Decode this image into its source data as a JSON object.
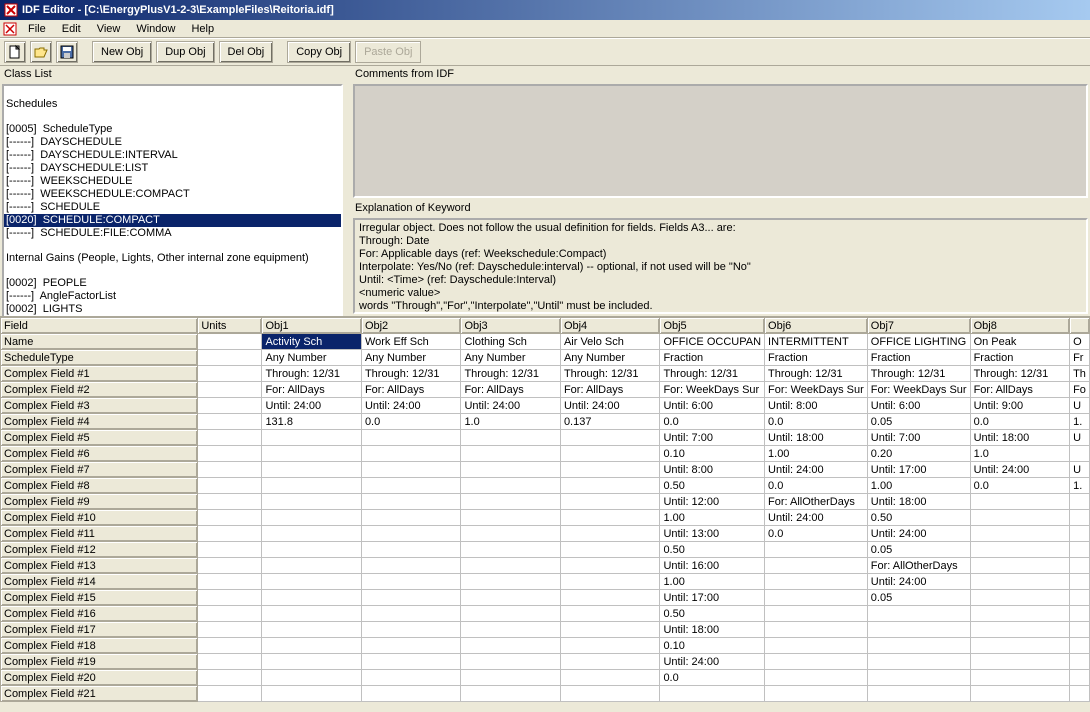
{
  "window": {
    "title": "IDF Editor - [C:\\EnergyPlusV1-2-3\\ExampleFiles\\Reitoria.idf]"
  },
  "menu": {
    "items": [
      "File",
      "Edit",
      "View",
      "Window",
      "Help"
    ]
  },
  "toolbar": {
    "new_obj": "New Obj",
    "dup_obj": "Dup Obj",
    "del_obj": "Del Obj",
    "copy_obj": "Copy Obj",
    "paste_obj": "Paste Obj"
  },
  "labels": {
    "class_list": "Class List",
    "comments": "Comments from IDF",
    "explanation": "Explanation of Keyword"
  },
  "class_list": [
    {
      "t": "blank"
    },
    {
      "t": "line",
      "text": "Schedules"
    },
    {
      "t": "blank"
    },
    {
      "t": "line",
      "text": "[0005]  ScheduleType"
    },
    {
      "t": "line",
      "text": "[------]  DAYSCHEDULE"
    },
    {
      "t": "line",
      "text": "[------]  DAYSCHEDULE:INTERVAL"
    },
    {
      "t": "line",
      "text": "[------]  DAYSCHEDULE:LIST"
    },
    {
      "t": "line",
      "text": "[------]  WEEKSCHEDULE"
    },
    {
      "t": "line",
      "text": "[------]  WEEKSCHEDULE:COMPACT"
    },
    {
      "t": "line",
      "text": "[------]  SCHEDULE"
    },
    {
      "t": "line",
      "text": "[0020]  SCHEDULE:COMPACT",
      "selected": true
    },
    {
      "t": "line",
      "text": "[------]  SCHEDULE:FILE:COMMA"
    },
    {
      "t": "blank"
    },
    {
      "t": "line",
      "text": "Internal Gains (People, Lights, Other internal zone equipment)"
    },
    {
      "t": "blank"
    },
    {
      "t": "line",
      "text": "[0002]  PEOPLE"
    },
    {
      "t": "line",
      "text": "[------]  AngleFactorList"
    },
    {
      "t": "line",
      "text": "[0002]  LIGHTS"
    }
  ],
  "explanation_lines": [
    "Irregular object.  Does not follow the usual definition for fields.  Fields A3... are:",
    "Through: Date",
    "For: Applicable days (ref: Weekschedule:Compact)",
    "Interpolate: Yes/No (ref: Dayschedule:interval) -- optional, if not used will be \"No\"",
    "Until: <Time> (ref: Dayschedule:Interval)",
    "<numeric value>",
    "words \"Through\",\"For\",\"Interpolate\",\"Until\" must be included."
  ],
  "grid": {
    "headers": [
      "Field",
      "Units",
      "Obj1",
      "Obj2",
      "Obj3",
      "Obj4",
      "Obj5",
      "Obj6",
      "Obj7",
      "Obj8",
      ""
    ],
    "row_labels": [
      "Name",
      "ScheduleType",
      "Complex Field #1",
      "Complex Field #2",
      "Complex Field #3",
      "Complex Field #4",
      "Complex Field #5",
      "Complex Field #6",
      "Complex Field #7",
      "Complex Field #8",
      "Complex Field #9",
      "Complex Field #10",
      "Complex Field #11",
      "Complex Field #12",
      "Complex Field #13",
      "Complex Field #14",
      "Complex Field #15",
      "Complex Field #16",
      "Complex Field #17",
      "Complex Field #18",
      "Complex Field #19",
      "Complex Field #20",
      "Complex Field #21"
    ],
    "selected_cell": {
      "row": 0,
      "col": 2
    },
    "cells": [
      [
        "",
        "Activity Sch",
        "Work Eff Sch",
        "Clothing Sch",
        "Air Velo Sch",
        "OFFICE OCCUPAN",
        "INTERMITTENT",
        "OFFICE LIGHTING",
        "On Peak",
        "O"
      ],
      [
        "",
        "Any Number",
        "Any Number",
        "Any Number",
        "Any Number",
        "Fraction",
        "Fraction",
        "Fraction",
        "Fraction",
        "Fr"
      ],
      [
        "",
        "Through: 12/31",
        "Through: 12/31",
        "Through: 12/31",
        "Through: 12/31",
        "Through: 12/31",
        "Through: 12/31",
        "Through: 12/31",
        "Through: 12/31",
        "Th"
      ],
      [
        "",
        "For: AllDays",
        "For: AllDays",
        "For: AllDays",
        "For: AllDays",
        "For: WeekDays Sur",
        "For: WeekDays Sur",
        "For: WeekDays Sur",
        "For: AllDays",
        "Fo"
      ],
      [
        "",
        "Until: 24:00",
        "Until: 24:00",
        "Until: 24:00",
        "Until: 24:00",
        "Until: 6:00",
        "Until: 8:00",
        "Until: 6:00",
        "Until:  9:00",
        "U"
      ],
      [
        "",
        "131.8",
        "0.0",
        "1.0",
        "0.137",
        "0.0",
        "0.0",
        "0.05",
        "0.0",
        "1."
      ],
      [
        "",
        "",
        "",
        "",
        "",
        "Until: 7:00",
        "Until: 18:00",
        "Until: 7:00",
        "Until: 18:00",
        "U"
      ],
      [
        "",
        "",
        "",
        "",
        "",
        "0.10",
        "1.00",
        "0.20",
        "1.0",
        ""
      ],
      [
        "",
        "",
        "",
        "",
        "",
        "Until: 8:00",
        "Until: 24:00",
        "Until: 17:00",
        "Until: 24:00",
        "U"
      ],
      [
        "",
        "",
        "",
        "",
        "",
        "0.50",
        "0.0",
        "1.00",
        "0.0",
        "1."
      ],
      [
        "",
        "",
        "",
        "",
        "",
        "Until: 12:00",
        "For: AllOtherDays",
        "Until: 18:00",
        "",
        ""
      ],
      [
        "",
        "",
        "",
        "",
        "",
        "1.00",
        "Until: 24:00",
        "0.50",
        "",
        ""
      ],
      [
        "",
        "",
        "",
        "",
        "",
        "Until: 13:00",
        "0.0",
        "Until: 24:00",
        "",
        ""
      ],
      [
        "",
        "",
        "",
        "",
        "",
        "0.50",
        "",
        "0.05",
        "",
        ""
      ],
      [
        "",
        "",
        "",
        "",
        "",
        "Until: 16:00",
        "",
        "For: AllOtherDays",
        "",
        ""
      ],
      [
        "",
        "",
        "",
        "",
        "",
        "1.00",
        "",
        "Until: 24:00",
        "",
        ""
      ],
      [
        "",
        "",
        "",
        "",
        "",
        "Until: 17:00",
        "",
        "0.05",
        "",
        ""
      ],
      [
        "",
        "",
        "",
        "",
        "",
        "0.50",
        "",
        "",
        "",
        ""
      ],
      [
        "",
        "",
        "",
        "",
        "",
        "Until: 18:00",
        "",
        "",
        "",
        ""
      ],
      [
        "",
        "",
        "",
        "",
        "",
        "0.10",
        "",
        "",
        "",
        ""
      ],
      [
        "",
        "",
        "",
        "",
        "",
        "Until: 24:00",
        "",
        "",
        "",
        ""
      ],
      [
        "",
        "",
        "",
        "",
        "",
        "0.0",
        "",
        "",
        "",
        ""
      ],
      [
        "",
        "",
        "",
        "",
        "",
        "",
        "",
        "",
        "",
        ""
      ]
    ]
  },
  "colors": {
    "titlebar_start": "#0a246a",
    "titlebar_end": "#a6caf0",
    "selection": "#0a246a",
    "bg": "#ece9d8",
    "border": "#aca899"
  }
}
